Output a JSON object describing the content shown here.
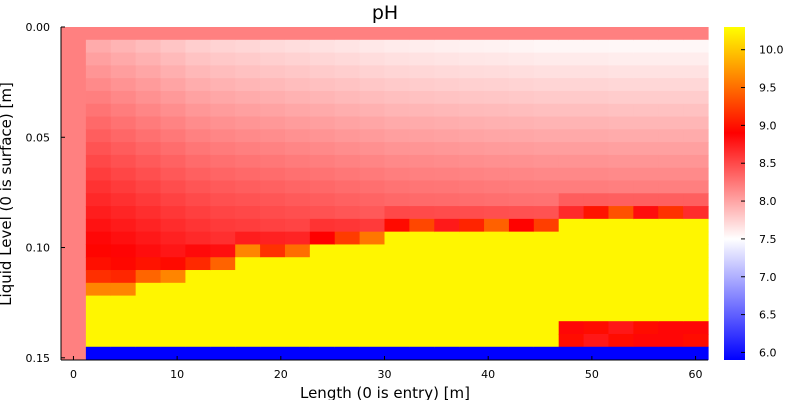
{
  "chart_data": {
    "type": "heatmap",
    "title": "pH",
    "xlabel": "Length (0 is entry) [m]",
    "ylabel": "Liquid Level (0 is surface) [m]",
    "xlim": [
      -1.2,
      61.2
    ],
    "ylim": [
      0.0,
      0.151
    ],
    "y_inverted": true,
    "x_ticks": [
      0,
      10,
      20,
      30,
      40,
      50,
      60
    ],
    "x_tick_labels": [
      "0",
      "10",
      "20",
      "30",
      "40",
      "50",
      "60"
    ],
    "y_ticks": [
      0.0,
      0.05,
      0.1,
      0.15
    ],
    "y_tick_labels": [
      "0.00",
      "0.05",
      "0.10",
      "0.15"
    ],
    "colorbar": {
      "range": [
        5.9,
        10.3
      ],
      "ticks": [
        6.0,
        6.5,
        7.0,
        7.5,
        8.0,
        8.5,
        9.0,
        9.5,
        10.0
      ],
      "tick_labels": [
        "6.0",
        "6.5",
        "7.0",
        "7.5",
        "8.0",
        "8.5",
        "9.0",
        "9.5",
        "10.0"
      ],
      "gradient": [
        "#0000ff",
        "#ffffff",
        "#ff0000",
        "#ffff00"
      ]
    },
    "grid": {
      "x_start": -1.2,
      "dx": 2.4,
      "nx": 26,
      "y_start": 0.0,
      "dy": 0.0058,
      "ny": 26
    },
    "inlet_column_value": 8.1,
    "top_row_value": 8.1,
    "bottom_row_value": 5.9,
    "upper_profile": {
      "surface_values_by_column": [
        7.85,
        7.8,
        7.75,
        7.7,
        7.65,
        7.62,
        7.6,
        7.58,
        7.56,
        7.54,
        7.52,
        7.5,
        7.48,
        7.47,
        7.46,
        7.45,
        7.44,
        7.43,
        7.42,
        7.42,
        7.42,
        7.41,
        7.41,
        7.41
      ],
      "value_increase_per_row": 0.063
    },
    "yellow_band_start_row_by_column": [
      21,
      21,
      20,
      20,
      19,
      19,
      18,
      18,
      18,
      17,
      17,
      17,
      16,
      16,
      16,
      16,
      16,
      16,
      16,
      15,
      15,
      15,
      15,
      15
    ],
    "yellow_band_end_row_by_column": [
      24,
      24,
      24,
      24,
      24,
      24,
      24,
      24,
      24,
      24,
      24,
      24,
      24,
      24,
      24,
      24,
      24,
      24,
      24,
      22,
      22,
      22,
      22,
      22
    ],
    "lower_band_values": [
      8.7,
      8.9,
      8.8,
      8.8,
      8.9
    ]
  }
}
